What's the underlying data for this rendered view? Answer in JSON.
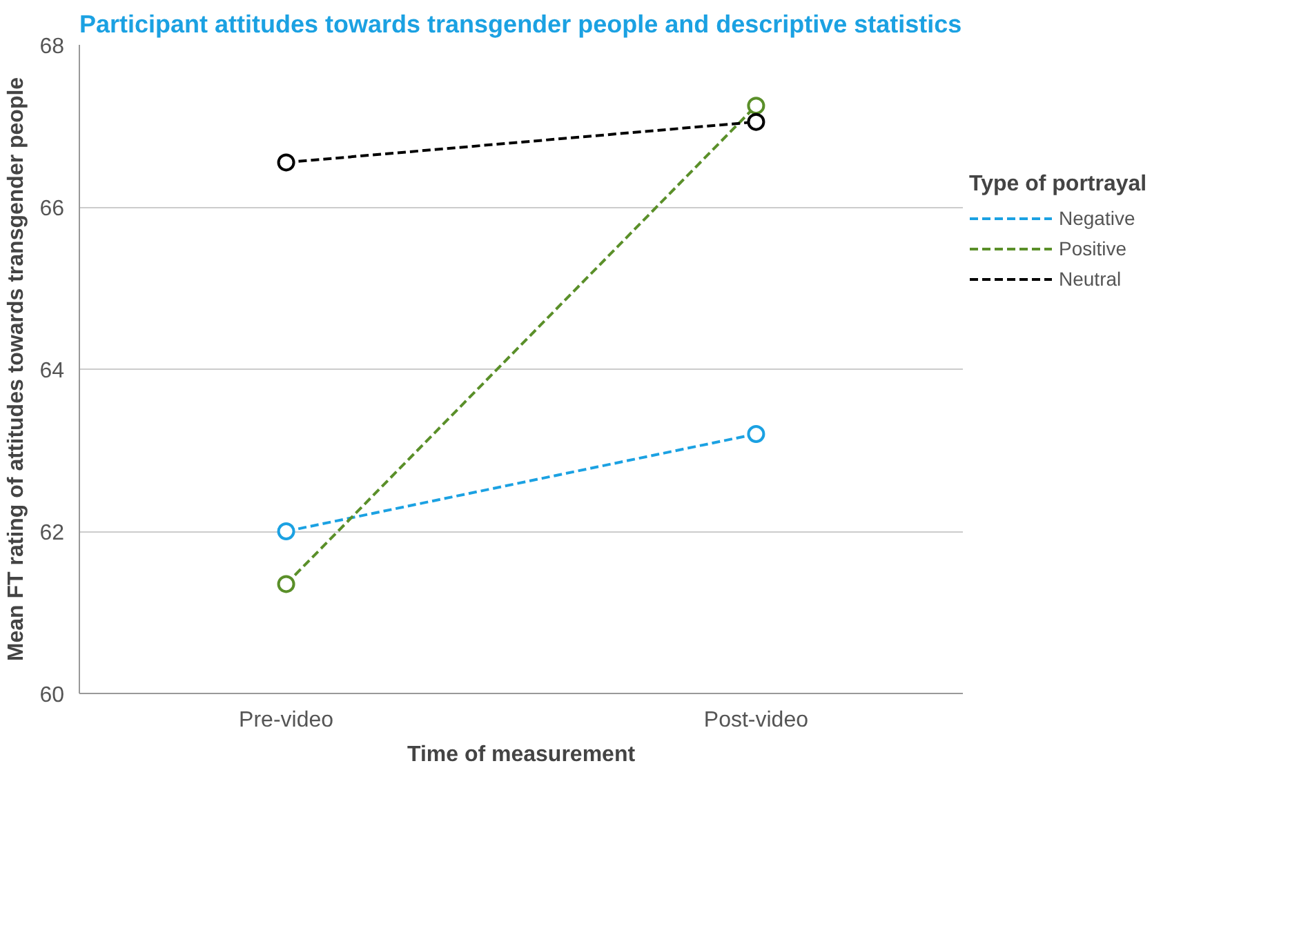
{
  "chart_data": {
    "type": "line",
    "title": "Participant attitudes towards transgender people and descriptive statistics",
    "xlabel": "Time of measurement",
    "ylabel": "Mean FT rating of attitudes towards transgender people",
    "legend_title": "Type of portrayal",
    "categories": [
      "Pre-video",
      "Post-video"
    ],
    "series": [
      {
        "name": "Negative",
        "color": "#1ba1e2",
        "values": [
          62.0,
          63.2
        ]
      },
      {
        "name": "Positive",
        "color": "#5a8f29",
        "values": [
          61.35,
          67.25
        ]
      },
      {
        "name": "Neutral",
        "color": "#000000",
        "values": [
          66.55,
          67.05
        ]
      }
    ],
    "ylim": [
      60,
      68
    ],
    "yticks": [
      60,
      62,
      64,
      66,
      68
    ],
    "grid": "y",
    "legend": "right",
    "marker": "circle",
    "line_style": "dashed"
  }
}
